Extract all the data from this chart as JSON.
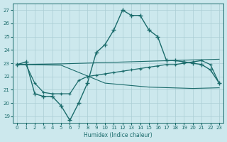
{
  "xlabel": "Humidex (Indice chaleur)",
  "background_color": "#cce8ed",
  "grid_color": "#aacdd4",
  "line_color": "#1a6b6b",
  "xlim": [
    -0.5,
    23.5
  ],
  "ylim": [
    18.5,
    27.5
  ],
  "yticks": [
    19,
    20,
    21,
    22,
    23,
    24,
    25,
    26,
    27
  ],
  "xticks": [
    0,
    1,
    2,
    3,
    4,
    5,
    6,
    7,
    8,
    9,
    10,
    11,
    12,
    13,
    14,
    15,
    16,
    17,
    18,
    19,
    20,
    21,
    22,
    23
  ],
  "line1_x": [
    0,
    1,
    2,
    3,
    4,
    5,
    6,
    7,
    8,
    9,
    10,
    11,
    12,
    13,
    14,
    15,
    16,
    17,
    18,
    19,
    20,
    21,
    22,
    23
  ],
  "line1_y": [
    22.9,
    23.1,
    20.7,
    20.5,
    20.5,
    19.8,
    18.7,
    20.0,
    21.5,
    23.8,
    24.4,
    25.5,
    27.0,
    26.6,
    26.6,
    25.5,
    25.0,
    23.2,
    23.2,
    23.1,
    23.0,
    22.9,
    22.5,
    21.5
  ],
  "line2_x": [
    0,
    1,
    2,
    3,
    4,
    5,
    6,
    7,
    8,
    9,
    10,
    11,
    12,
    13,
    14,
    15,
    16,
    17,
    18,
    19,
    20,
    21,
    22,
    23
  ],
  "line2_y": [
    22.9,
    22.9,
    21.5,
    20.8,
    20.7,
    20.7,
    20.7,
    21.7,
    22.0,
    22.1,
    22.2,
    22.3,
    22.4,
    22.5,
    22.6,
    22.7,
    22.8,
    22.9,
    22.9,
    23.0,
    23.1,
    23.2,
    22.9,
    21.5
  ],
  "line3_x": [
    0,
    5,
    10,
    15,
    20,
    23
  ],
  "line3_y": [
    22.9,
    22.95,
    23.05,
    23.15,
    23.25,
    23.3
  ],
  "line4_x": [
    0,
    5,
    10,
    15,
    20,
    23
  ],
  "line4_y": [
    22.9,
    22.85,
    21.5,
    21.2,
    21.1,
    21.15
  ]
}
